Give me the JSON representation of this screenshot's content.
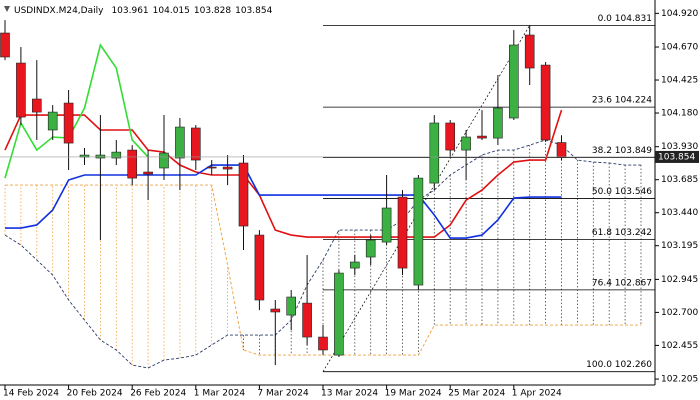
{
  "chart_data": {
    "type": "candlestick",
    "title": "USDINDX.M24,Daily",
    "categories": [
      "14 Feb 2024",
      null,
      null,
      null,
      "20 Feb 2024",
      null,
      null,
      null,
      "26 Feb 2024",
      null,
      null,
      null,
      "1 Mar 2024",
      null,
      null,
      null,
      "7 Mar 2024",
      null,
      null,
      null,
      "13 Mar 2024",
      null,
      null,
      null,
      "19 Mar 2024",
      null,
      null,
      null,
      "25 Mar 2024",
      null,
      null,
      null,
      "1 Apr 2024",
      null,
      null,
      null,
      null,
      null,
      null,
      null,
      null
    ],
    "ohlc": [
      [
        104.774,
        104.87,
        104.573,
        104.596
      ],
      [
        104.551,
        104.67,
        104.091,
        104.15
      ],
      [
        104.284,
        104.573,
        103.98,
        104.187
      ],
      [
        104.054,
        104.239,
        103.98,
        104.187
      ],
      [
        104.254,
        104.351,
        103.757,
        103.957
      ],
      [
        103.853,
        103.92,
        103.794,
        103.868
      ],
      [
        103.846,
        104.165,
        103.237,
        103.868
      ],
      [
        103.846,
        103.98,
        103.794,
        103.89
      ],
      [
        103.905,
        103.942,
        103.645,
        103.697
      ],
      [
        103.742,
        103.905,
        103.534,
        103.727
      ],
      [
        103.772,
        104.165,
        103.683,
        103.883
      ],
      [
        103.846,
        104.143,
        103.608,
        104.076
      ],
      [
        104.069,
        104.091,
        103.757,
        103.831
      ],
      [
        103.779,
        103.831,
        103.72,
        103.772
      ],
      [
        103.779,
        103.868,
        103.645,
        103.764
      ],
      [
        103.809,
        103.868,
        103.163,
        103.341
      ],
      [
        103.274,
        103.311,
        102.717,
        102.792
      ],
      [
        102.725,
        102.792,
        102.309,
        102.703
      ],
      [
        102.68,
        102.866,
        102.569,
        102.814
      ],
      [
        102.769,
        103.126,
        102.458,
        102.517
      ],
      [
        102.517,
        102.606,
        102.383,
        102.421
      ],
      [
        102.383,
        103.014,
        102.369,
        102.992
      ],
      [
        103.029,
        103.126,
        102.977,
        103.074
      ],
      [
        103.111,
        103.274,
        103.052,
        103.237
      ],
      [
        103.222,
        103.72,
        103.2,
        103.475
      ],
      [
        103.556,
        103.608,
        102.977,
        103.029
      ],
      [
        102.903,
        103.72,
        102.866,
        103.697
      ],
      [
        103.66,
        104.165,
        103.608,
        104.106
      ],
      [
        104.106,
        104.128,
        103.846,
        103.905
      ],
      [
        103.905,
        104.054,
        103.683,
        104.002
      ],
      [
        104.009,
        104.202,
        103.98,
        103.994
      ],
      [
        103.994,
        104.462,
        103.942,
        104.217
      ],
      [
        104.143,
        104.796,
        104.128,
        104.685
      ],
      [
        104.759,
        104.831,
        104.388,
        104.514
      ],
      [
        104.536,
        104.559,
        103.965,
        103.98
      ],
      [
        103.961,
        104.015,
        103.828,
        103.854
      ]
    ],
    "up_color": "#3cb043",
    "down_color": "#e8161e",
    "lines": [
      {
        "color": "#e01010",
        "style": "solid",
        "values": [
          103.905,
          104.165,
          104.165,
          104.165,
          104.165,
          104.165,
          104.054,
          104.054,
          104.054,
          103.905,
          103.89,
          103.794,
          103.742,
          103.72,
          103.72,
          103.72,
          103.571,
          103.311,
          103.274,
          103.259,
          103.259,
          103.259,
          103.259,
          103.259,
          103.259,
          103.259,
          103.259,
          103.259,
          103.349,
          103.534,
          103.608,
          103.72,
          103.816,
          103.831,
          103.831,
          104.202,
          null,
          null,
          null,
          null,
          null
        ]
      },
      {
        "color": "#1030e0",
        "style": "solid",
        "values": [
          103.326,
          103.326,
          103.349,
          103.46,
          103.683,
          103.72,
          103.72,
          103.72,
          103.72,
          103.72,
          103.72,
          103.72,
          103.72,
          103.794,
          103.794,
          103.794,
          103.571,
          103.571,
          103.571,
          103.571,
          103.571,
          103.571,
          103.571,
          103.571,
          103.571,
          103.571,
          103.571,
          103.423,
          103.252,
          103.252,
          103.274,
          103.386,
          103.549,
          103.556,
          103.556,
          103.556,
          null,
          null,
          null,
          null,
          null
        ]
      },
      {
        "color": "#33dd33",
        "style": "solid",
        "values": [
          103.697,
          104.106,
          103.905,
          104.002,
          103.994,
          104.217,
          104.685,
          104.514,
          103.98,
          103.854,
          null,
          null,
          null,
          null,
          null,
          null,
          null,
          null,
          null,
          null,
          null,
          null,
          null,
          null,
          null,
          null,
          null,
          null,
          null,
          null,
          null,
          null,
          null,
          null,
          null,
          null,
          null,
          null,
          null,
          null,
          null
        ]
      }
    ],
    "cloud": {
      "span_a": {
        "color": "#2a3a6a",
        "style": "dashed",
        "values": [
          103.274,
          103.2,
          103.089,
          102.977,
          102.792,
          102.643,
          102.495,
          102.421,
          102.309,
          102.287,
          102.346,
          102.361,
          102.383,
          102.458,
          102.532,
          102.532,
          102.532,
          102.532,
          102.643,
          102.903,
          103.089,
          103.311,
          103.311,
          103.311,
          103.311,
          103.386,
          103.534,
          103.608,
          103.72,
          103.794,
          103.868,
          103.905,
          103.905,
          103.942,
          103.98,
          103.942,
          103.831,
          103.816,
          103.809,
          103.794,
          103.794
        ]
      },
      "span_b": {
        "color": "#f0a040",
        "style": "dashed",
        "values": [
          103.645,
          103.645,
          103.645,
          103.645,
          103.645,
          103.645,
          103.645,
          103.645,
          103.645,
          103.645,
          103.645,
          103.645,
          103.645,
          103.645,
          103.052,
          102.421,
          102.383,
          102.383,
          102.383,
          102.383,
          102.383,
          102.383,
          102.383,
          102.383,
          102.383,
          102.383,
          102.383,
          102.606,
          102.606,
          102.606,
          102.606,
          102.606,
          102.606,
          102.606,
          102.606,
          102.606,
          102.606,
          102.606,
          102.606,
          102.606,
          102.606
        ]
      }
    },
    "fibonacci": [
      {
        "label": "0.0 104.831",
        "value": 104.831
      },
      {
        "label": "23.6 104.224",
        "value": 104.224
      },
      {
        "label": "38.2 103.849",
        "value": 103.849
      },
      {
        "label": "50.0 103.546",
        "value": 103.546
      },
      {
        "label": "61.8 103.242",
        "value": 103.242
      },
      {
        "label": "76.4 102.867",
        "value": 102.867
      },
      {
        "label": "100.0 102.260",
        "value": 102.26
      }
    ],
    "ylim": [
      102.161,
      104.982
    ],
    "yticks": [
      {
        "value": 104.92,
        "label": "104.920"
      },
      {
        "value": 104.67,
        "label": "104.670"
      },
      104.425,
      {
        "value": 104.18,
        "label": "104.180"
      },
      {
        "value": 103.93,
        "label": "103.930"
      },
      103.685,
      {
        "value": 103.44,
        "label": "103.440"
      },
      103.195,
      102.945,
      {
        "value": 102.7,
        "label": "102.700"
      },
      102.455,
      102.205
    ]
  }
}
